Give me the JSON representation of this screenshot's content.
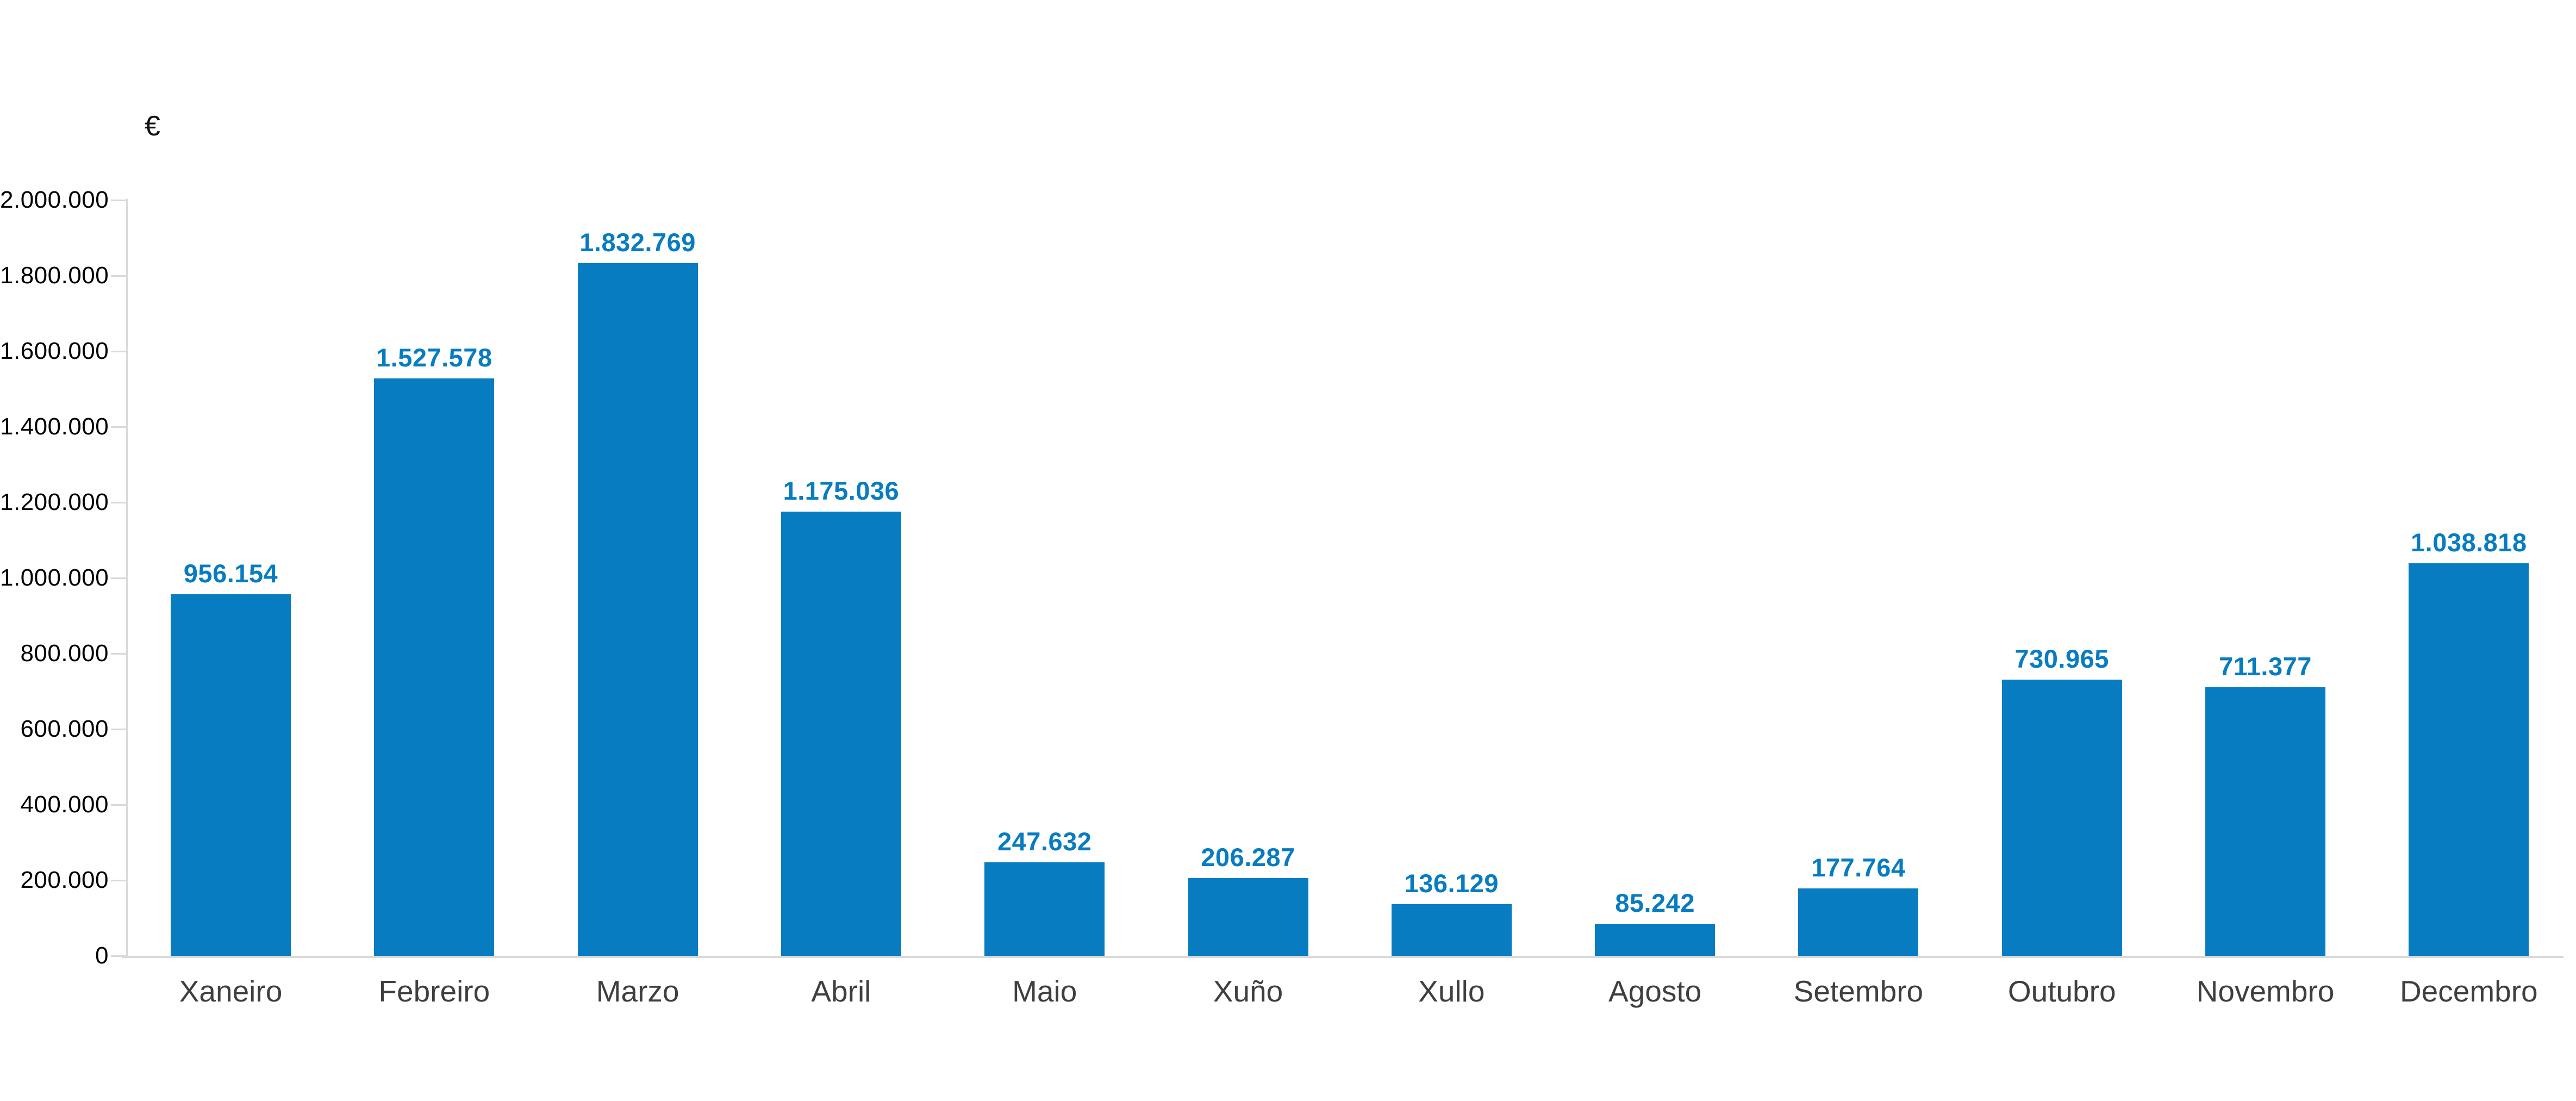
{
  "chart_data": {
    "type": "bar",
    "title": "",
    "unit_label": "€",
    "categories": [
      "Xaneiro",
      "Febreiro",
      "Marzo",
      "Abril",
      "Maio",
      "Xuño",
      "Xullo",
      "Agosto",
      "Setembro",
      "Outubro",
      "Novembro",
      "Decembro"
    ],
    "values": [
      956154,
      1527578,
      1832769,
      1175036,
      247632,
      206287,
      136129,
      85242,
      177764,
      730965,
      711377,
      1038818
    ],
    "data_labels": [
      "956.154",
      "1.527.578",
      "1.832.769",
      "1.175.036",
      "247.632",
      "206.287",
      "136.129",
      "85.242",
      "177.764",
      "730.965",
      "711.377",
      "1.038.818"
    ],
    "ytick_labels": [
      "0",
      "200.000",
      "400.000",
      "600.000",
      "800.000",
      "1.000.000",
      "1.200.000",
      "1.400.000",
      "1.600.000",
      "1.800.000",
      "2.000.000"
    ],
    "ylim": [
      0,
      2000000
    ],
    "ytick_step": 200000,
    "grid": false,
    "legend": false,
    "bar_color": "#077cc1",
    "value_label_color": "#077cc1",
    "axis_line_color": "#d9d9d9",
    "ytick_text_color": "#000000",
    "category_text_color": "#3f3f3e",
    "unit_text_color": "#111111"
  }
}
